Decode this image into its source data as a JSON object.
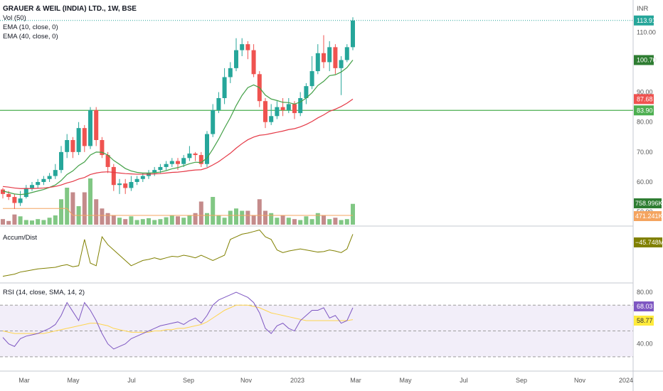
{
  "header": {
    "title": "GRAUER & WEIL (INDIA) LTD., 1W, BSE",
    "indicators": [
      "Vol (50)",
      "EMA (10, close, 0)",
      "EMA (40, close, 0)"
    ],
    "currency": "INR"
  },
  "panes": {
    "accum_label": "Accum/Dist",
    "rsi_label": "RSI (14, close, SMA, 14, 2)"
  },
  "price_axis": {
    "ticks": [
      "110.00",
      "100.70",
      "90.00",
      "80.00",
      "70.00",
      "60.00",
      "50.00"
    ],
    "ticks_values": [
      110,
      100.7,
      90,
      80,
      70,
      60,
      50
    ],
    "badges": [
      {
        "label": "113.91",
        "value": 113.91,
        "color": "#26a69a"
      },
      {
        "label": "100.70",
        "value": 100.7,
        "color": "#2e7d32"
      },
      {
        "label": "87.68",
        "value": 87.68,
        "color": "#ef5350"
      },
      {
        "label": "83.90",
        "value": 83.9,
        "color": "#4caf50"
      }
    ],
    "volume_badges": [
      {
        "label": "758.996K",
        "color": "#2e7d32"
      },
      {
        "label": "471.241K",
        "color": "#f4a460"
      }
    ],
    "accum_badge": {
      "label": "−45.748M",
      "color": "#808000"
    },
    "rsi_ticks": [
      "80.00",
      "40.00"
    ],
    "rsi_badges": [
      {
        "label": "68.03",
        "color": "#7e57c2"
      },
      {
        "label": "58.77",
        "color": "#ffeb3b"
      }
    ]
  },
  "time_axis": [
    "Mar",
    "May",
    "Jul",
    "Sep",
    "Nov",
    "2023",
    "Mar",
    "May",
    "Jul",
    "Sep",
    "Nov",
    "2024"
  ],
  "colors": {
    "up": "#26a69a",
    "down": "#ef5350",
    "ema10": "#43a047",
    "ema40": "#e53946",
    "vol_ma": "#f4a460",
    "accum": "#808000",
    "rsi": "#7e57c2",
    "rsi_ma": "#ffd54f",
    "hline": "#4caf50"
  },
  "chart_data": {
    "type": "candlestick",
    "timeframe": "1W",
    "hline": 83.9,
    "candles": [
      [
        null,
        57.5,
        56.0,
        58.0,
        54.5
      ],
      [
        null,
        56.0,
        55.0,
        57.0,
        54.0
      ],
      [
        null,
        55.0,
        53.0,
        56.0,
        51.0
      ],
      [
        null,
        53.0,
        54.5,
        57.0,
        52.0
      ],
      [
        null,
        55.0,
        58.0,
        59.0,
        54.5
      ],
      [
        null,
        58.0,
        59.0,
        60.0,
        57.0
      ],
      [
        null,
        59.0,
        60.0,
        61.0,
        58.0
      ],
      [
        null,
        60.0,
        61.0,
        62.0,
        59.0
      ],
      [
        null,
        61.0,
        62.0,
        63.0,
        60.0
      ],
      [
        null,
        62.0,
        64.0,
        66.0,
        61.0
      ],
      [
        null,
        64.0,
        70.0,
        72.0,
        63.0
      ],
      [
        null,
        70.0,
        74.0,
        76.0,
        68.0
      ],
      [
        null,
        74.0,
        70.0,
        75.0,
        68.0
      ],
      [
        null,
        70.0,
        78.0,
        80.0,
        69.0
      ],
      [
        null,
        78.0,
        72.0,
        79.0,
        70.0
      ],
      [
        null,
        72.0,
        84.0,
        85.0,
        71.0
      ],
      [
        null,
        84.0,
        74.0,
        85.0,
        72.0
      ],
      [
        null,
        74.0,
        69.0,
        75.0,
        68.0
      ],
      [
        null,
        69.0,
        65.0,
        70.0,
        63.0
      ],
      [
        null,
        65.0,
        59.0,
        66.0,
        57.0
      ],
      [
        null,
        59.0,
        59.5,
        61.0,
        56.0
      ],
      [
        null,
        59.5,
        58.0,
        61.0,
        56.0
      ],
      [
        null,
        58.0,
        60.0,
        62.0,
        57.0
      ],
      [
        null,
        60.0,
        61.0,
        62.0,
        59.0
      ],
      [
        null,
        61.0,
        62.0,
        63.0,
        60.0
      ],
      [
        null,
        62.0,
        63.0,
        64.0,
        61.0
      ],
      [
        null,
        63.0,
        64.0,
        65.0,
        62.0
      ],
      [
        null,
        64.0,
        65.0,
        66.0,
        63.0
      ],
      [
        null,
        65.0,
        66.0,
        67.0,
        64.0
      ],
      [
        null,
        66.0,
        67.0,
        68.0,
        65.0
      ],
      [
        null,
        67.0,
        66.0,
        68.0,
        64.0
      ],
      [
        null,
        66.0,
        68.0,
        69.0,
        65.0
      ],
      [
        null,
        68.0,
        69.5,
        72.0,
        67.0
      ],
      [
        null,
        69.5,
        69.0,
        70.0,
        67.0
      ],
      [
        null,
        69.0,
        66.0,
        70.0,
        65.0
      ],
      [
        null,
        66.0,
        76.0,
        77.0,
        65.0
      ],
      [
        null,
        76.0,
        84.0,
        86.0,
        75.0
      ],
      [
        null,
        84.0,
        88.0,
        90.0,
        83.0
      ],
      [
        null,
        88.0,
        95.0,
        98.0,
        86.0
      ],
      [
        null,
        95.0,
        98.0,
        100.0,
        93.0
      ],
      [
        null,
        98.0,
        104.0,
        108.0,
        97.0
      ],
      [
        null,
        104.0,
        106.0,
        108.0,
        102.0
      ],
      [
        null,
        106.0,
        104.0,
        107.0,
        101.0
      ],
      [
        null,
        104.0,
        96.0,
        106.0,
        95.0
      ],
      [
        null,
        96.0,
        87.0,
        97.0,
        85.0
      ],
      [
        null,
        87.0,
        80.0,
        88.0,
        78.0
      ],
      [
        null,
        80.0,
        82.0,
        86.0,
        79.0
      ],
      [
        null,
        82.0,
        85.0,
        87.0,
        81.0
      ],
      [
        null,
        85.0,
        84.0,
        88.0,
        82.0
      ],
      [
        null,
        84.0,
        86.0,
        88.0,
        83.0
      ],
      [
        null,
        86.0,
        83.0,
        87.0,
        81.0
      ],
      [
        null,
        83.0,
        88.0,
        90.0,
        82.0
      ],
      [
        null,
        88.0,
        92.0,
        93.0,
        86.0
      ],
      [
        null,
        92.0,
        97.0,
        102.0,
        91.0
      ],
      [
        null,
        97.0,
        103.0,
        106.0,
        96.0
      ],
      [
        null,
        103.0,
        100.0,
        109.0,
        98.0
      ],
      [
        null,
        100.0,
        105.0,
        107.0,
        97.0
      ],
      [
        null,
        105.0,
        98.0,
        106.0,
        96.0
      ],
      [
        null,
        98.0,
        100.7,
        102.0,
        89.0
      ],
      [
        null,
        100.7,
        105.0,
        106.0,
        100.0
      ],
      [
        null,
        105.0,
        113.91,
        115.0,
        104.0
      ]
    ],
    "ema10": [
      57,
      56.5,
      56,
      55.8,
      56.0,
      56.5,
      57.0,
      57.5,
      58.2,
      59.0,
      60.5,
      62.5,
      63.7,
      65.5,
      66.7,
      69.0,
      70.0,
      69.9,
      69.0,
      67.2,
      65.9,
      64.5,
      63.7,
      63.2,
      63.0,
      63.0,
      63.1,
      63.3,
      63.8,
      64.4,
      64.8,
      65.4,
      66.1,
      66.6,
      66.5,
      68.0,
      71.0,
      74.3,
      78.0,
      81.5,
      85.5,
      88.9,
      91.5,
      92.4,
      91.5,
      89.0,
      87.7,
      87.2,
      86.6,
      86.5,
      86.0,
      86.7,
      88.0,
      89.8,
      92.2,
      93.6,
      95.5,
      95.8,
      96.7,
      98.2,
      100.7
    ],
    "ema40": [
      58.5,
      58.3,
      58.0,
      57.8,
      57.8,
      57.8,
      57.9,
      58.0,
      58.2,
      58.5,
      59.0,
      59.7,
      60.2,
      61.0,
      61.5,
      62.5,
      63.0,
      63.3,
      63.4,
      63.2,
      63.0,
      62.8,
      62.7,
      62.6,
      62.6,
      62.6,
      62.7,
      62.8,
      63.0,
      63.2,
      63.3,
      63.5,
      63.8,
      64.0,
      64.1,
      64.7,
      65.7,
      66.8,
      68.2,
      69.6,
      71.3,
      72.8,
      74.1,
      75.0,
      75.6,
      75.8,
      76.2,
      76.6,
      77.0,
      77.5,
      77.8,
      78.4,
      79.2,
      80.2,
      81.4,
      82.4,
      83.6,
      84.3,
      85.2,
      86.3,
      87.68
    ],
    "volume": [
      0.12,
      0.08,
      0.22,
      0.18,
      0.1,
      0.09,
      0.12,
      0.1,
      0.15,
      0.2,
      0.55,
      0.8,
      0.7,
      0.4,
      0.7,
      1.0,
      0.55,
      0.35,
      0.25,
      0.2,
      0.15,
      0.12,
      0.18,
      0.1,
      0.12,
      0.14,
      0.1,
      0.12,
      0.16,
      0.2,
      0.18,
      0.15,
      0.2,
      0.25,
      0.5,
      0.25,
      0.6,
      0.2,
      0.15,
      0.3,
      0.35,
      0.3,
      0.3,
      0.2,
      0.55,
      0.3,
      0.25,
      0.15,
      0.2,
      0.15,
      0.12,
      0.1,
      0.18,
      0.12,
      0.25,
      0.2,
      0.12,
      0.15,
      0.1,
      0.12,
      0.45
    ],
    "accum": [
      0.1,
      0.12,
      0.14,
      0.18,
      0.2,
      0.22,
      0.24,
      0.25,
      0.26,
      0.27,
      0.3,
      0.32,
      0.28,
      0.3,
      0.8,
      0.35,
      0.3,
      0.85,
      0.7,
      0.6,
      0.5,
      0.4,
      0.3,
      0.35,
      0.4,
      0.42,
      0.45,
      0.42,
      0.45,
      0.48,
      0.47,
      0.5,
      0.48,
      0.45,
      0.5,
      0.45,
      0.4,
      0.45,
      0.5,
      0.8,
      0.85,
      0.9,
      0.92,
      0.95,
      0.98,
      0.85,
      0.8,
      0.6,
      0.55,
      0.58,
      0.6,
      0.62,
      0.6,
      0.58,
      0.56,
      0.57,
      0.6,
      0.58,
      0.55,
      0.62,
      0.9
    ],
    "rsi": [
      45,
      40,
      38,
      44,
      46,
      47,
      48,
      50,
      52,
      55,
      62,
      72,
      65,
      58,
      72,
      66,
      58,
      48,
      40,
      36,
      38,
      40,
      44,
      46,
      48,
      50,
      52,
      54,
      55,
      56,
      57,
      55,
      58,
      60,
      56,
      62,
      70,
      74,
      76,
      78,
      80,
      78,
      76,
      72,
      64,
      52,
      48,
      54,
      56,
      52,
      50,
      58,
      62,
      66,
      66,
      68,
      60,
      62,
      56,
      58,
      68
    ],
    "rsi_ma": [
      50,
      49,
      48,
      48,
      48,
      48,
      48,
      48,
      49,
      50,
      51,
      52,
      53,
      54,
      55,
      56,
      56,
      55,
      54,
      52,
      51,
      50,
      49,
      49,
      49,
      49,
      50,
      50,
      51,
      51,
      52,
      52,
      53,
      54,
      55,
      57,
      60,
      63,
      66,
      68,
      70,
      70,
      70,
      69,
      68,
      66,
      64,
      63,
      62,
      61,
      60,
      59,
      58,
      58,
      58,
      58,
      58,
      58,
      58,
      58,
      58.77
    ],
    "rsi_bands": [
      70,
      50,
      30
    ]
  }
}
